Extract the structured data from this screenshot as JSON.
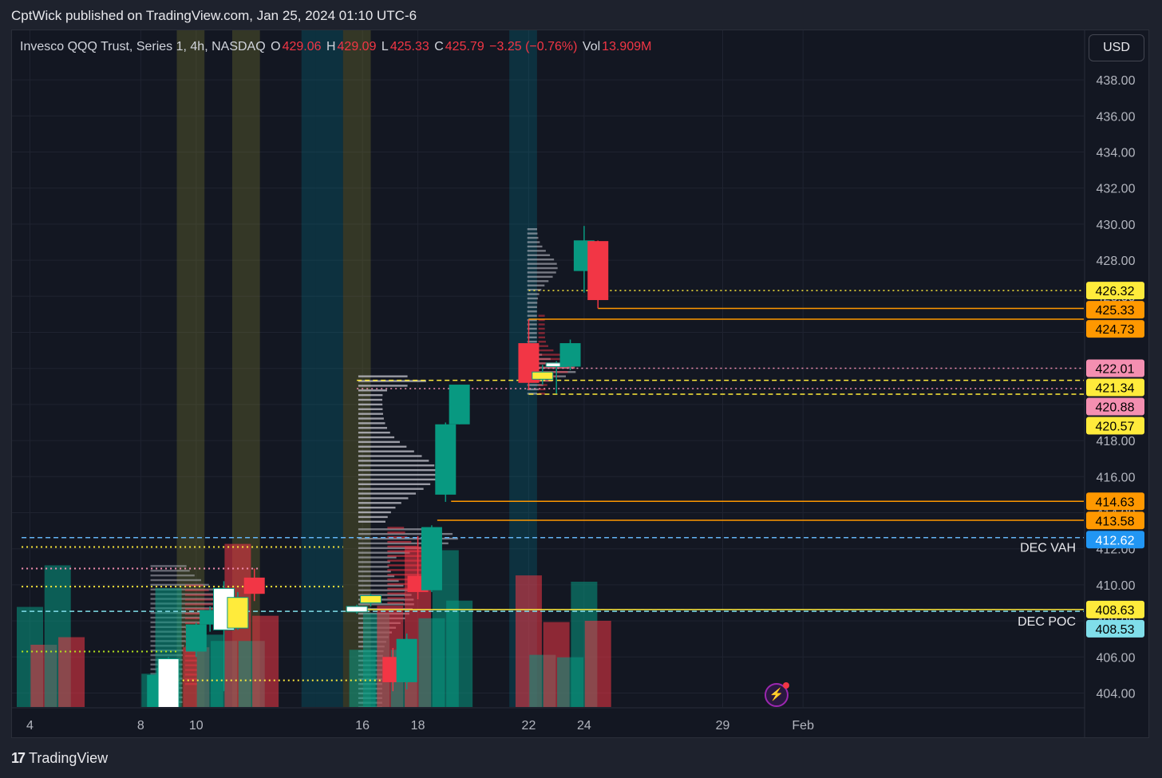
{
  "publisher": "CptWick published on TradingView.com, Jan 25, 2024 01:10 UTC-6",
  "legend": {
    "symbol": "Invesco QQQ Trust, Series 1, 4h, NASDAQ",
    "o_label": "O",
    "o_value": "429.06",
    "h_label": "H",
    "h_value": "429.09",
    "l_label": "L",
    "l_value": "425.33",
    "c_label": "C",
    "c_value": "425.79",
    "change": "−3.25 (−0.76%)",
    "vol_label": "Vol",
    "vol_value": "13.909M"
  },
  "currency_button": "USD",
  "footer_brand": "TradingView",
  "colors": {
    "up": "#089981",
    "down": "#f23645",
    "background": "#131722",
    "grid": "#222633",
    "axis_text": "#b2b5be",
    "orange": "#ff9800",
    "yellow": "#ffeb3b",
    "pink": "#f48fb1",
    "blue": "#2196f3",
    "cyan": "#80deea"
  },
  "chart_data": {
    "type": "candlestick",
    "title": "Invesco QQQ Trust, Series 1, 4h, NASDAQ",
    "ylim": [
      403,
      439
    ],
    "y_ticks": [
      "438.00",
      "436.00",
      "434.00",
      "432.00",
      "430.00",
      "428.00",
      "426.00",
      "424.00",
      "422.00",
      "420.00",
      "418.00",
      "416.00",
      "414.00",
      "412.00",
      "410.00",
      "408.00",
      "406.00",
      "404.00"
    ],
    "x_ticks": [
      "4",
      "8",
      "10",
      "16",
      "18",
      "22",
      "24",
      "29",
      "Feb"
    ],
    "grid": true,
    "candles": [
      {
        "day": 8.6,
        "open": 403.2,
        "high": 405.4,
        "low": 403.1,
        "close": 405.0
      },
      {
        "day": 9.0,
        "open": 403.2,
        "high": 406.0,
        "low": 403.1,
        "close": 405.9,
        "color": "white"
      },
      {
        "day": 10.0,
        "open": 406.3,
        "high": 407.9,
        "low": 406.0,
        "close": 407.8
      },
      {
        "day": 10.5,
        "open": 407.8,
        "high": 408.8,
        "low": 407.4,
        "close": 408.6
      },
      {
        "day": 11.0,
        "open": 407.5,
        "high": 410.2,
        "low": 404.1,
        "close": 409.8,
        "color": "white"
      },
      {
        "day": 11.5,
        "open": 407.6,
        "high": 409.6,
        "low": 407.5,
        "close": 409.3,
        "color": "yellow"
      },
      {
        "day": 12.1,
        "open": 410.4,
        "high": 410.9,
        "low": 409.1,
        "close": 409.5
      },
      {
        "day": 15.8,
        "open": 408.5,
        "high": 408.9,
        "low": 408.4,
        "close": 408.8,
        "color": "white"
      },
      {
        "day": 16.3,
        "open": 409.0,
        "high": 409.5,
        "low": 408.8,
        "close": 409.4,
        "color": "yellow"
      },
      {
        "day": 17.1,
        "open": 406.0,
        "high": 406.5,
        "low": 404.1,
        "close": 404.6
      },
      {
        "day": 17.6,
        "open": 404.6,
        "high": 407.3,
        "low": 404.2,
        "close": 407.0
      },
      {
        "day": 18.0,
        "open": 410.5,
        "high": 412.7,
        "low": 409.2,
        "close": 409.6
      },
      {
        "day": 18.5,
        "open": 409.7,
        "high": 413.3,
        "low": 409.6,
        "close": 413.2
      },
      {
        "day": 19.0,
        "open": 415.0,
        "high": 419.0,
        "low": 414.6,
        "close": 418.9
      },
      {
        "day": 19.5,
        "open": 418.9,
        "high": 421.1,
        "low": 418.9,
        "close": 421.1
      },
      {
        "day": 22.0,
        "open": 423.4,
        "high": 424.7,
        "low": 420.8,
        "close": 421.2
      },
      {
        "day": 22.5,
        "open": 421.4,
        "high": 422.2,
        "low": 421.1,
        "close": 421.8,
        "color": "yellow"
      },
      {
        "day": 23.0,
        "open": 422.1,
        "high": 422.4,
        "low": 420.6,
        "close": 422.3,
        "color": "white"
      },
      {
        "day": 23.5,
        "open": 422.1,
        "high": 423.6,
        "low": 421.9,
        "close": 423.4
      },
      {
        "day": 24.0,
        "open": 427.4,
        "high": 429.9,
        "low": 426.2,
        "close": 429.1
      },
      {
        "day": 24.5,
        "open": 429.06,
        "high": 429.09,
        "low": 425.33,
        "close": 425.79
      }
    ],
    "volume_bars": [
      {
        "day": 4.0,
        "dir": "up",
        "level": 0.8
      },
      {
        "day": 4.5,
        "dir": "down",
        "level": 0.5
      },
      {
        "day": 5.0,
        "dir": "up",
        "level": 1.13
      },
      {
        "day": 5.5,
        "dir": "down",
        "level": 0.56
      },
      {
        "day": 8.5,
        "dir": "up",
        "level": 0.27
      },
      {
        "day": 9.0,
        "dir": "up",
        "level": 0.95
      },
      {
        "day": 10.0,
        "dir": "down",
        "level": 0.48
      },
      {
        "day": 10.5,
        "dir": "up",
        "level": 0.58
      },
      {
        "day": 11.0,
        "dir": "up",
        "level": 0.53
      },
      {
        "day": 11.5,
        "dir": "down",
        "level": 1.3
      },
      {
        "day": 12.0,
        "dir": "up",
        "level": 0.53
      },
      {
        "day": 12.5,
        "dir": "down",
        "level": 0.73
      },
      {
        "day": 16.0,
        "dir": "up",
        "level": 0.46
      },
      {
        "day": 16.5,
        "dir": "up",
        "level": 0.75
      },
      {
        "day": 17.0,
        "dir": "down",
        "level": 0.81
      },
      {
        "day": 17.5,
        "dir": "up",
        "level": 0.46
      },
      {
        "day": 18.0,
        "dir": "down",
        "level": 1.28
      },
      {
        "day": 18.5,
        "dir": "up",
        "level": 0.71
      },
      {
        "day": 19.0,
        "dir": "up",
        "level": 1.25
      },
      {
        "day": 19.5,
        "dir": "up",
        "level": 0.85
      },
      {
        "day": 22.0,
        "dir": "down",
        "level": 1.05
      },
      {
        "day": 22.5,
        "dir": "up",
        "level": 0.42
      },
      {
        "day": 23.0,
        "dir": "down",
        "level": 0.68
      },
      {
        "day": 23.5,
        "dir": "up",
        "level": 0.4
      },
      {
        "day": 24.0,
        "dir": "up",
        "level": 1.0
      },
      {
        "day": 24.5,
        "dir": "down",
        "level": 0.69
      }
    ],
    "shaded_zones": [
      {
        "from": 9.3,
        "to": 10.3,
        "color": "olive"
      },
      {
        "from": 11.3,
        "to": 12.3,
        "color": "olive"
      },
      {
        "from": 13.8,
        "to": 14.3,
        "color": "teal"
      },
      {
        "from": 14.3,
        "to": 15.3,
        "color": "teal"
      },
      {
        "from": 15.3,
        "to": 16.3,
        "color": "olive"
      },
      {
        "from": 21.3,
        "to": 22.3,
        "color": "teal"
      }
    ],
    "level_lines": [
      {
        "price": "426.32",
        "value": 426.32,
        "style": "dotted",
        "color": "#ffeb3b",
        "from_day": 22,
        "badge_color": "#ffeb3b",
        "badge_text": "#000000"
      },
      {
        "price": "425.33",
        "value": 425.33,
        "style": "solid",
        "color": "#ff9800",
        "from_day": 24.5,
        "badge_color": "#ff9800",
        "badge_text": "#000000"
      },
      {
        "price": "424.73",
        "value": 424.73,
        "style": "solid",
        "color": "#ff9800",
        "from_day": 22,
        "badge_color": "#ff9800",
        "badge_text": "#000000"
      },
      {
        "price": "422.01",
        "value": 422.01,
        "style": "dotted",
        "color": "#f48fb1",
        "from_day": 22,
        "badge_color": "#f48fb1",
        "badge_text": "#000000"
      },
      {
        "price": "421.34",
        "value": 421.34,
        "style": "dashed",
        "color": "#ffeb3b",
        "from_day": 15.8,
        "badge_color": "#ffeb3b",
        "badge_text": "#000000"
      },
      {
        "price": "420.88",
        "value": 420.88,
        "style": "dotted",
        "color": "#f48fb1",
        "from_day": 15.8,
        "badge_color": "#f48fb1",
        "badge_text": "#000000"
      },
      {
        "price": "420.57",
        "value": 420.57,
        "style": "dashed",
        "color": "#ffeb3b",
        "from_day": 22,
        "badge_color": "#ffeb3b",
        "badge_text": "#000000"
      },
      {
        "price": "414.63",
        "value": 414.63,
        "style": "solid",
        "color": "#ff9800",
        "from_day": 19.2,
        "badge_color": "#ff9800",
        "badge_text": "#000000"
      },
      {
        "price": "413.58",
        "value": 413.58,
        "style": "solid",
        "color": "#ff9800",
        "from_day": 18.7,
        "badge_color": "#ff9800",
        "badge_text": "#000000"
      },
      {
        "price": "412.62",
        "value": 412.62,
        "style": "dashed",
        "color": "#64b5f6",
        "from_day": 3.7,
        "badge_color": "#2196f3",
        "badge_text": "#ffffff"
      },
      {
        "price": "408.63",
        "value": 408.63,
        "style": "solid",
        "color": "#ffeb3b",
        "from_day": 15.8,
        "badge_color": "#ffeb3b",
        "badge_text": "#000000"
      },
      {
        "price": "408.53",
        "value": 408.53,
        "style": "dashed",
        "color": "#80deea",
        "from_day": 3.7,
        "badge_color": "#80deea",
        "badge_text": "#000000"
      }
    ],
    "extra_lines": [
      {
        "value": 412.1,
        "style": "dotted",
        "color": "#ffeb3b",
        "from": 3.7,
        "to": 15.3
      },
      {
        "value": 410.9,
        "style": "dotted",
        "color": "#f48fb1",
        "from": 3.7,
        "to": 12.3
      },
      {
        "value": 409.9,
        "style": "dotted",
        "color": "#ffeb3b",
        "from": 3.7,
        "to": 15.3
      },
      {
        "value": 406.3,
        "style": "dotted",
        "color": "#b5e61d",
        "from": 3.7,
        "to": 9.3
      },
      {
        "value": 404.7,
        "style": "dotted",
        "color": "#ffeb3b",
        "from": 8.3,
        "to": 16.8
      }
    ],
    "annotations": [
      {
        "text": "DEC VAH",
        "value": 412.1
      },
      {
        "text": "DEC POC",
        "value": 408.0
      }
    ]
  }
}
